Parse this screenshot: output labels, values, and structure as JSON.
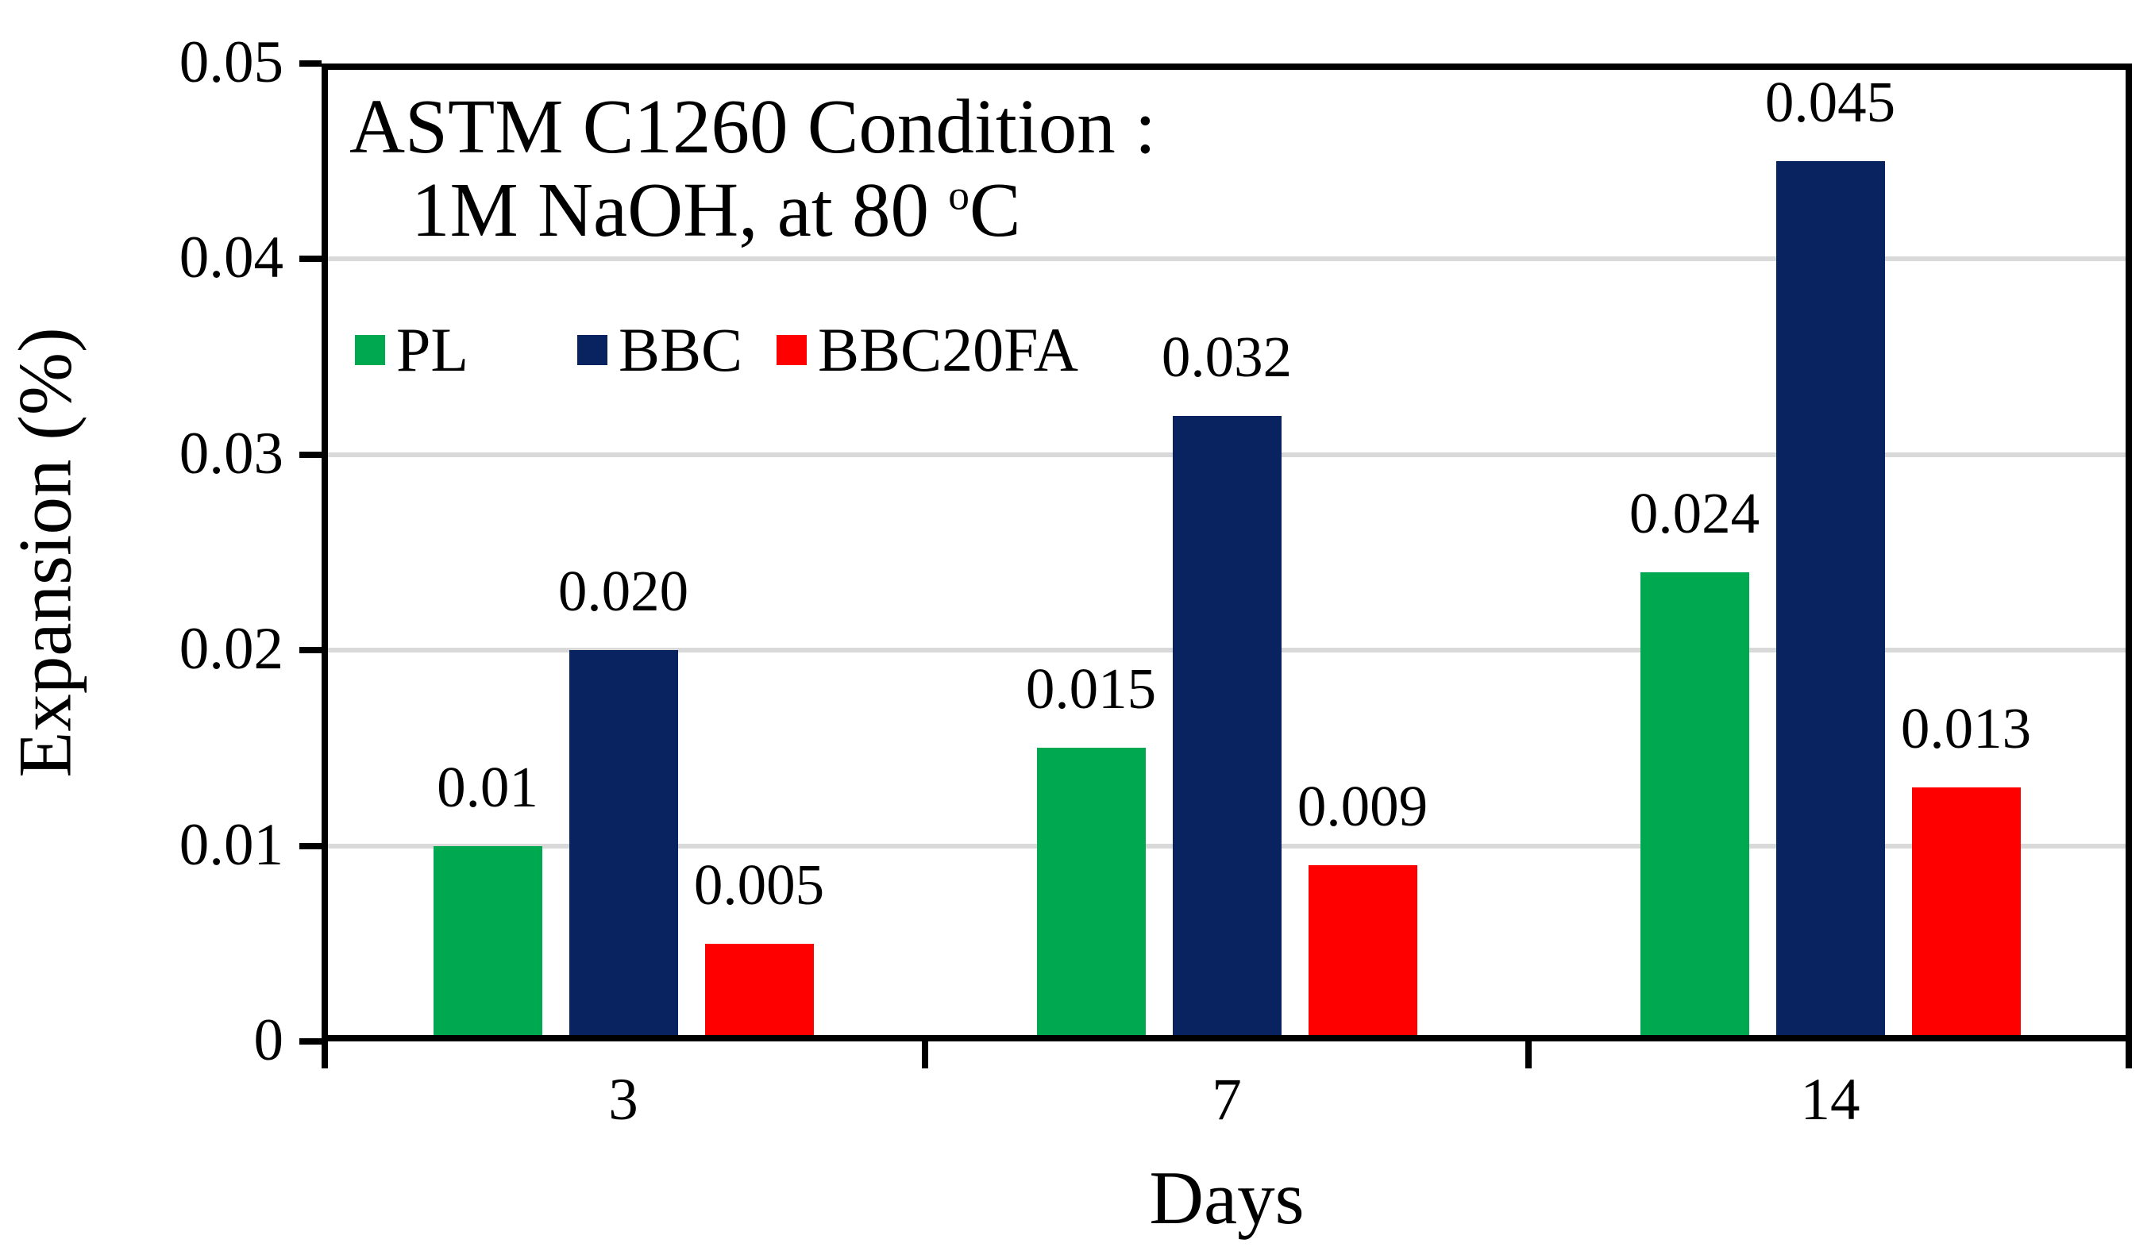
{
  "chart_data": {
    "type": "bar",
    "annotation": {
      "line1": "ASTM C1260 Condition :",
      "line2_prefix": "1M NaOH, at 80 ",
      "line2_sup": "o",
      "line2_suffix": "C"
    },
    "xlabel": "Days",
    "ylabel": "Expansion (%)",
    "categories": [
      "3",
      "7",
      "14"
    ],
    "series": [
      {
        "name": "PL",
        "color": "#00A950",
        "values": [
          0.01,
          0.015,
          0.024
        ],
        "labels": [
          "0.01",
          "0.015",
          "0.024"
        ]
      },
      {
        "name": "BBC",
        "color": "#08235F",
        "values": [
          0.02,
          0.032,
          0.045
        ],
        "labels": [
          "0.020",
          "0.032",
          "0.045"
        ]
      },
      {
        "name": "BBC20FA",
        "color": "#FF0000",
        "values": [
          0.005,
          0.009,
          0.013
        ],
        "labels": [
          "0.005",
          "0.009",
          "0.013"
        ]
      }
    ],
    "y_axis": {
      "min": 0,
      "max": 0.05,
      "tick_values": [
        0,
        0.01,
        0.02,
        0.03,
        0.04,
        0.05
      ],
      "tick_labels": [
        "0",
        "0.01",
        "0.02",
        "0.03",
        "0.04",
        "0.05"
      ]
    },
    "grid": true,
    "gridline_color": "#D9D9D9",
    "legend_position": "inside-top-left",
    "ylim": [
      0,
      0.05
    ]
  }
}
